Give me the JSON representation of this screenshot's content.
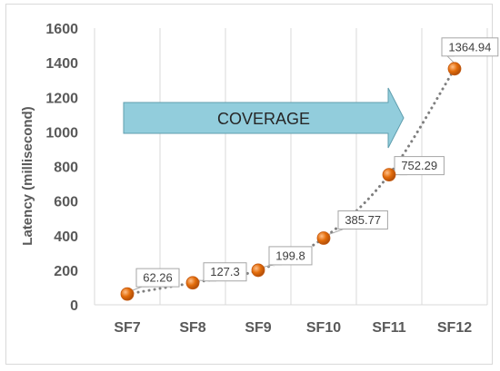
{
  "chart_data": {
    "type": "line",
    "categories": [
      "SF7",
      "SF8",
      "SF9",
      "SF10",
      "SF11",
      "SF12"
    ],
    "series": [
      {
        "values": [
          62.26,
          127.3,
          199.8,
          385.77,
          752.29,
          1364.94
        ]
      }
    ],
    "data_labels": [
      "62.26",
      "127.3",
      "199.8",
      "385.77",
      "752.29",
      "1364.94"
    ],
    "ylabel": "Latency (millisecond)",
    "xlabel": "",
    "ylim": [
      0,
      1600
    ],
    "yticks": [
      0,
      200,
      400,
      600,
      800,
      1000,
      1200,
      1400,
      1600
    ],
    "grid": "vertical",
    "annotation": "COVERAGE",
    "colors": {
      "marker": "#e36c0a",
      "line": "#7f7f7f",
      "arrow_fill": "#92cddc",
      "arrow_stroke": "#5f9eae",
      "grid": "#d9d9d9",
      "label_border": "#a6a6a6"
    }
  }
}
